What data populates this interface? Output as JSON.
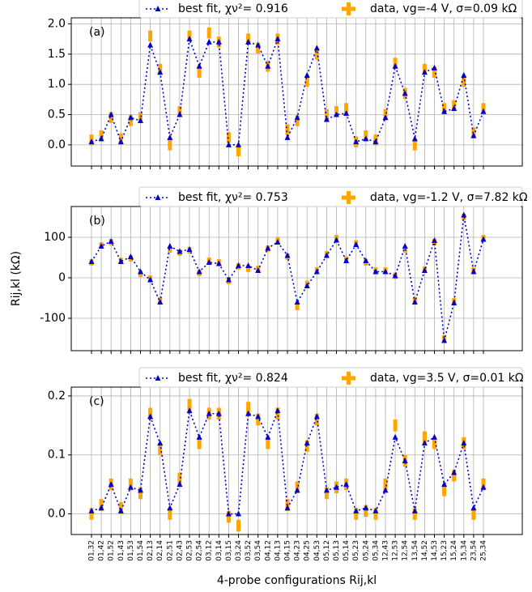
{
  "chart_data": [
    {
      "type": "line",
      "label": "(a)",
      "categories": [
        "01,32",
        "01,42",
        "01,52",
        "01,43",
        "01,53",
        "01,54",
        "02,13",
        "02,14",
        "02,51",
        "02,43",
        "02,53",
        "02,54",
        "03,12",
        "03,14",
        "03,15",
        "03,24",
        "03,52",
        "03,54",
        "04,12",
        "04,13",
        "04,15",
        "04,23",
        "04,25",
        "04,53",
        "05,12",
        "05,13",
        "05,14",
        "05,23",
        "05,24",
        "05,34",
        "12,43",
        "12,53",
        "12,54",
        "13,54",
        "14,52",
        "14,53",
        "15,23",
        "15,24",
        "15,34",
        "23,54",
        "25,34"
      ],
      "series": [
        {
          "name": "best fit, χν²= 0.916",
          "color": "#0000cc",
          "values": [
            0.05,
            0.1,
            0.5,
            0.05,
            0.45,
            0.4,
            1.65,
            1.2,
            0.12,
            0.5,
            1.75,
            1.3,
            1.7,
            1.7,
            0.0,
            0.0,
            1.7,
            1.65,
            1.3,
            1.75,
            0.12,
            0.45,
            1.15,
            1.6,
            0.42,
            0.5,
            0.52,
            0.05,
            0.1,
            0.05,
            0.45,
            1.3,
            0.85,
            0.1,
            1.2,
            1.27,
            0.55,
            0.6,
            1.15,
            0.15,
            0.55
          ]
        },
        {
          "name": "data, vg=-4 V, σ=0.09 kΩ",
          "color": "#ffa500",
          "error": 0.09,
          "values": [
            0.08,
            0.15,
            0.45,
            0.1,
            0.4,
            0.45,
            1.8,
            1.25,
            0.0,
            0.55,
            1.8,
            1.2,
            1.85,
            1.7,
            0.12,
            -0.1,
            1.75,
            1.6,
            1.3,
            1.75,
            0.25,
            0.4,
            1.05,
            1.5,
            0.5,
            0.55,
            0.6,
            0.05,
            0.15,
            0.08,
            0.5,
            1.35,
            0.85,
            0.0,
            1.25,
            1.2,
            0.6,
            0.65,
            1.05,
            0.2,
            0.6
          ]
        }
      ],
      "ylim": [
        -0.35,
        2.1
      ],
      "yticks": [
        {
          "value": 0,
          "label": "0.0"
        },
        {
          "value": 0.5,
          "label": "0.5"
        },
        {
          "value": 1,
          "label": "1.0"
        },
        {
          "value": 1.5,
          "label": "1.5"
        },
        {
          "value": 2,
          "label": "2.0"
        }
      ],
      "grid": true
    },
    {
      "type": "line",
      "label": "(b)",
      "ylabel": "Rij,kl (kΩ)",
      "series": [
        {
          "name": "best fit, χν²= 0.753",
          "color": "#0000cc",
          "values": [
            40,
            78,
            90,
            40,
            52,
            15,
            -5,
            -60,
            78,
            65,
            70,
            15,
            38,
            35,
            -5,
            30,
            30,
            18,
            73,
            88,
            55,
            -60,
            -20,
            15,
            55,
            93,
            42,
            82,
            42,
            15,
            15,
            5,
            78,
            -60,
            18,
            92,
            -155,
            -62,
            155,
            15,
            95
          ]
        },
        {
          "name": "data, vg=-1.2 V, σ=7.82 kΩ",
          "color": "#ffa500",
          "error": 7.82,
          "values": [
            38,
            80,
            88,
            42,
            48,
            10,
            -2,
            -55,
            70,
            62,
            68,
            12,
            42,
            38,
            -8,
            28,
            22,
            22,
            72,
            92,
            52,
            -72,
            -15,
            18,
            58,
            98,
            45,
            85,
            38,
            18,
            18,
            5,
            70,
            -55,
            20,
            88,
            -150,
            -58,
            150,
            18,
            98
          ]
        }
      ],
      "ylim": [
        -180,
        176
      ],
      "yticks": [
        -100,
        0,
        100
      ],
      "grid": true
    },
    {
      "type": "line",
      "label": "(c)",
      "xlabel": "4-probe configurations Rij,kl",
      "series": [
        {
          "name": "best fit, χν²= 0.824",
          "color": "#0000cc",
          "values": [
            0.005,
            0.01,
            0.05,
            0.005,
            0.045,
            0.04,
            0.165,
            0.12,
            0.01,
            0.05,
            0.175,
            0.13,
            0.17,
            0.17,
            0.0,
            0.0,
            0.17,
            0.165,
            0.13,
            0.175,
            0.01,
            0.04,
            0.12,
            0.165,
            0.04,
            0.045,
            0.05,
            0.005,
            0.01,
            0.005,
            0.04,
            0.13,
            0.09,
            0.005,
            0.12,
            0.13,
            0.05,
            0.07,
            0.12,
            0.01,
            0.045
          ]
        },
        {
          "name": "data, vg=3.5 V, σ=0.01 kΩ",
          "color": "#ffa500",
          "error": 0.01,
          "values": [
            0.0,
            0.015,
            0.05,
            0.01,
            0.05,
            0.035,
            0.17,
            0.11,
            0.0,
            0.06,
            0.185,
            0.12,
            0.17,
            0.17,
            -0.005,
            -0.02,
            0.18,
            0.16,
            0.12,
            0.17,
            0.015,
            0.045,
            0.115,
            0.16,
            0.035,
            0.045,
            0.05,
            0.0,
            0.005,
            0.0,
            0.05,
            0.15,
            0.09,
            0.0,
            0.13,
            0.12,
            0.04,
            0.065,
            0.12,
            0.0,
            0.05
          ]
        }
      ],
      "ylim": [
        -0.035,
        0.215
      ],
      "yticks": [
        {
          "value": 0,
          "label": "0.0"
        },
        {
          "value": 0.1,
          "label": "0.1"
        },
        {
          "value": 0.2,
          "label": "0.2"
        }
      ],
      "grid": true
    }
  ]
}
